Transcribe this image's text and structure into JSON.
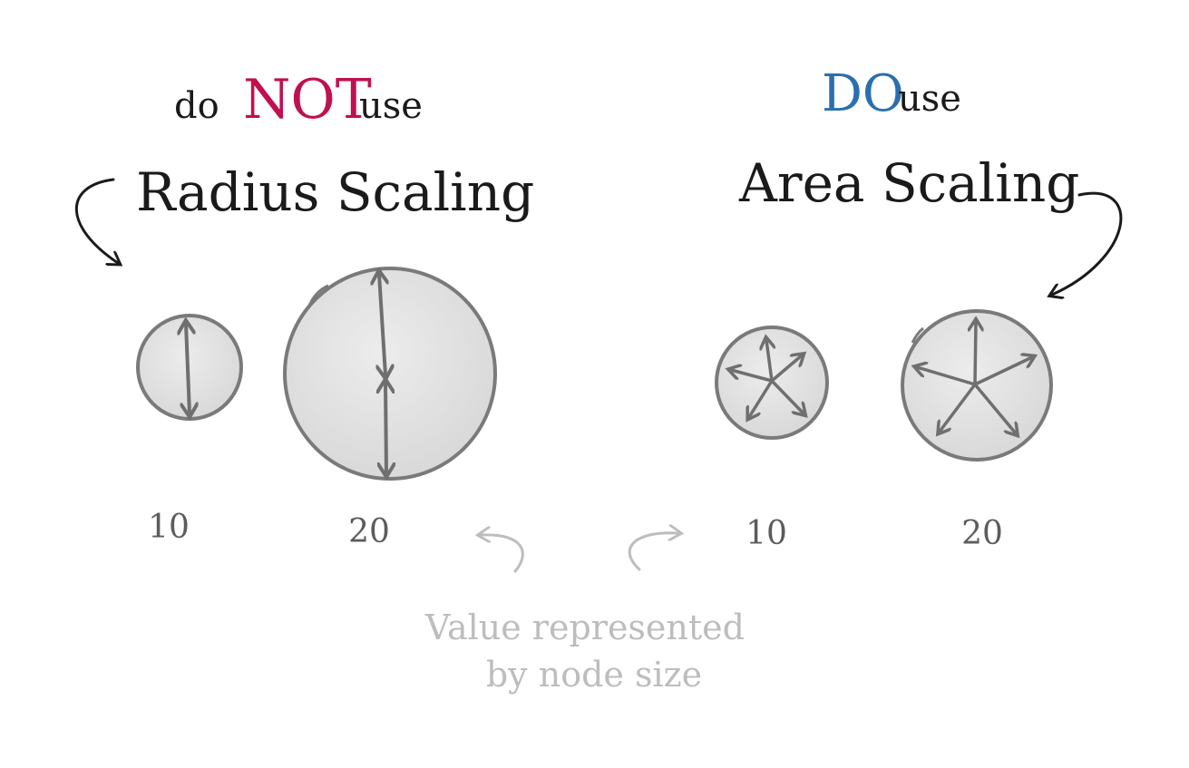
{
  "left": {
    "heading_prefix": "do",
    "heading_emphasis": "NOT",
    "heading_suffix": "use",
    "title": "Radius Scaling",
    "emphasis_color": "#c0104f",
    "values": [
      "10",
      "20"
    ]
  },
  "right": {
    "heading_emphasis": "DO",
    "heading_suffix": "use",
    "title": "Area Scaling",
    "emphasis_color": "#2a6fb0",
    "values": [
      "10",
      "20"
    ]
  },
  "caption": {
    "line1": "Value represented",
    "line2": "by node size"
  },
  "colors": {
    "ink": "#1a1a1a",
    "circle_stroke": "#7a7a7a",
    "circle_fill": "#e3e3e3",
    "caption": "#bdbdbd"
  }
}
